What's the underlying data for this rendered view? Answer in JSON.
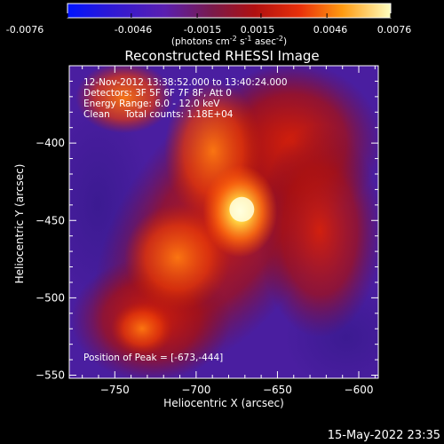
{
  "colorbar": {
    "ticks": [
      "-0.0076",
      "-0.0046",
      "-0.0015",
      "0.0015",
      "0.0046",
      "0.0076"
    ],
    "units_main": "(photons cm",
    "units_exp1": "-2",
    "units_mid": " s",
    "units_exp2": "-1",
    "units_end": " asec",
    "units_exp3": "-2",
    "units_close": ")",
    "range": [
      -0.0076,
      0.0076
    ]
  },
  "chart_data": {
    "type": "heatmap",
    "title": "Reconstructed RHESSI Image",
    "xlabel": "Heliocentric X (arcsec)",
    "ylabel": "Heliocentric Y (arcsec)",
    "xlim": [
      -778,
      -588
    ],
    "ylim": [
      -552,
      -350
    ],
    "xticks": [
      -750,
      -700,
      -650,
      -600
    ],
    "yticks": [
      -550,
      -500,
      -450,
      -400
    ],
    "xtick_labels": [
      "−750",
      "−700",
      "−650",
      "−600"
    ],
    "ytick_labels": [
      "−550",
      "−500",
      "−450",
      "−400"
    ],
    "peak": {
      "x": -673,
      "y": -444,
      "value": 0.0076
    },
    "annotations": {
      "time": "12-Nov-2012 13:38:52.000 to 13:40:24.000",
      "detectors": "Detectors: 3F 5F 6F 7F 8F, Att 0",
      "energy": "Energy Range: 6.0 - 12.0 keV",
      "clean": "Clean     Total counts: 1.18E+04",
      "peak_label": "Position of Peak = [-673,-444]"
    }
  },
  "footer": {
    "timestamp": "15-May-2022 23:35"
  }
}
